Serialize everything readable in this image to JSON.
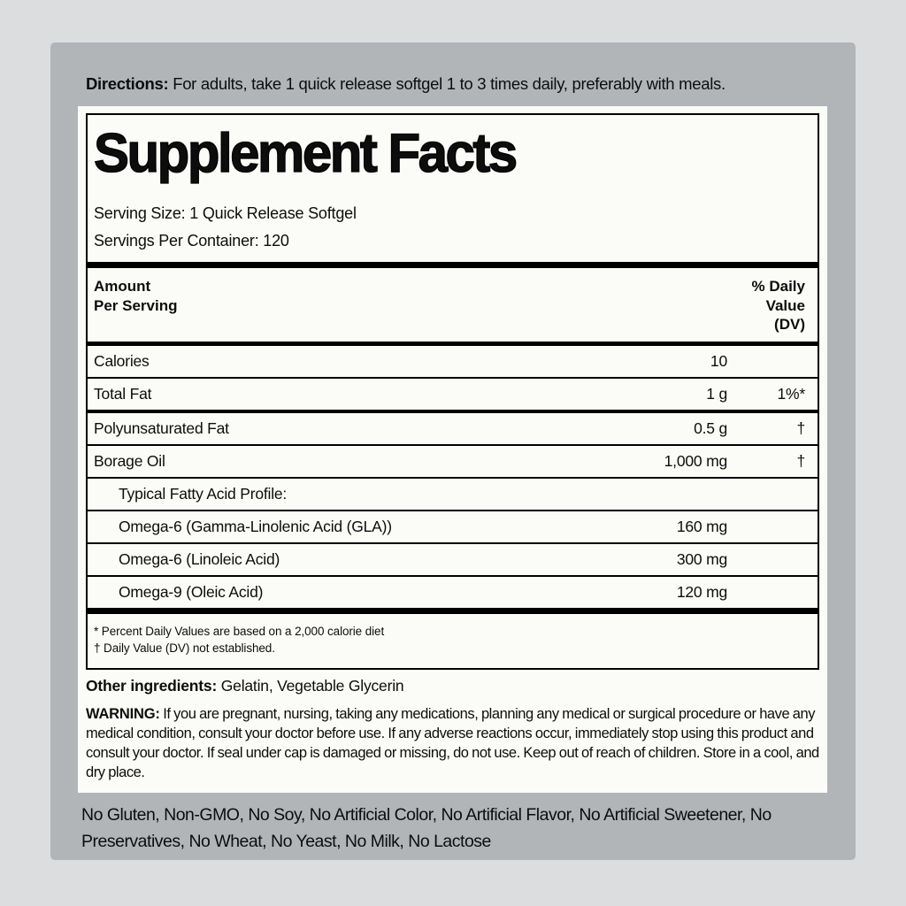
{
  "colors": {
    "outer_background": "#dcddde",
    "panel_background": "#b1b5b8",
    "label_background": "#fbfcf7",
    "ink": "#0d0d0d"
  },
  "directions": {
    "label": "Directions:",
    "text": "For adults, take 1 quick release softgel 1 to 3 times daily, preferably with meals."
  },
  "supplement_facts": {
    "title": "Supplement Facts",
    "serving_size": "Serving Size: 1 Quick Release Softgel",
    "servings_per_container": "Servings Per Container: 120",
    "header": {
      "amount_line1": "Amount",
      "amount_line2": "Per Serving",
      "dv_line1": "% Daily",
      "dv_line2": "Value",
      "dv_line3": "(DV)"
    },
    "rows": [
      {
        "name": "Calories",
        "amount": "10",
        "dv": ""
      },
      {
        "name": "Total Fat",
        "amount": "1 g",
        "dv": "1%*"
      },
      {
        "name": "Polyunsaturated Fat",
        "amount": "0.5 g",
        "dv": "†"
      },
      {
        "name": "Borage Oil",
        "amount": "1,000 mg",
        "dv": "†"
      },
      {
        "name": "Typical Fatty Acid Profile:",
        "amount": "",
        "dv": ""
      },
      {
        "name": "Omega-6 (Gamma-Linolenic Acid (GLA))",
        "amount": "160 mg",
        "dv": ""
      },
      {
        "name": "Omega-6 (Linoleic Acid)",
        "amount": "300 mg",
        "dv": ""
      },
      {
        "name": "Omega-9 (Oleic Acid)",
        "amount": "120 mg",
        "dv": ""
      }
    ],
    "footnotes": [
      "* Percent Daily Values are based on a 2,000 calorie diet",
      "† Daily Value (DV) not established."
    ]
  },
  "other_ingredients": {
    "label": "Other ingredients:",
    "text": "Gelatin, Vegetable Glycerin"
  },
  "warning": {
    "label": "WARNING:",
    "text": "If you are pregnant, nursing, taking any medications, planning any medical or surgical procedure or have any medical condition, consult your doctor before use. If any adverse reactions occur, immediately stop using this product and consult your doctor. If seal under cap is damaged or missing, do not use. Keep out of reach of children. Store in a cool, and dry place."
  },
  "claims": "No Gluten, Non-GMO, No Soy, No Artificial Color, No Artificial Flavor, No Artificial Sweetener, No Preservatives, No Wheat, No Yeast, No Milk, No Lactose"
}
